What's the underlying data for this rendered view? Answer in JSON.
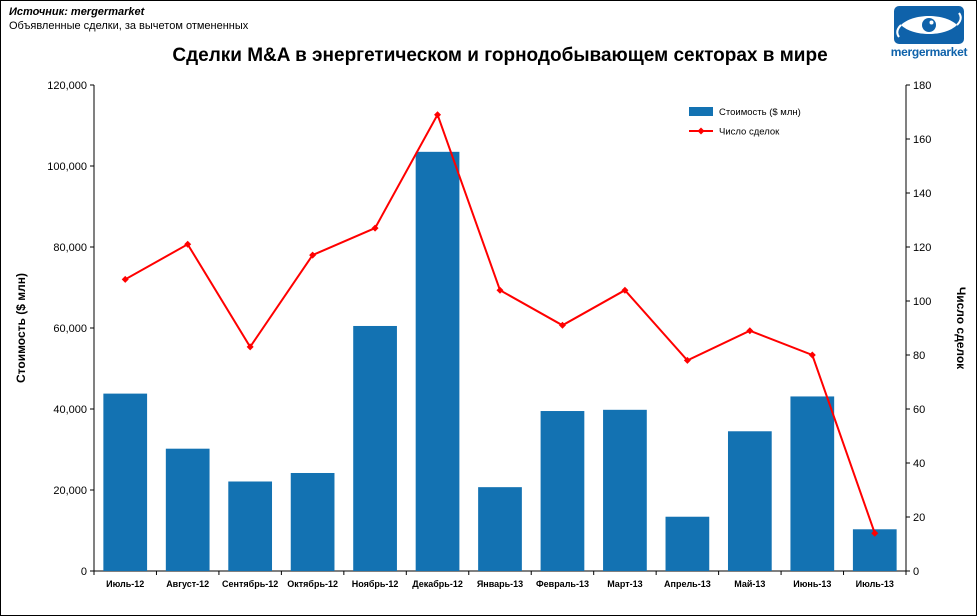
{
  "header": {
    "source_line1": "Источник: mergermarket",
    "source_line2": "Объявленные сделки, за вычетом отмененных",
    "logo_text": "mergermarket"
  },
  "colors": {
    "brand": "#0f62aa",
    "bar": "#1372b2",
    "line": "#ff0000"
  },
  "chart_data": {
    "type": "bar",
    "subtype": "bar+line combo, dual axis",
    "title": "Сделки M&A в энергетическом и горнодобывающем секторах в мире",
    "categories": [
      "Июль-12",
      "Август-12",
      "Сентябрь-12",
      "Октябрь-12",
      "Ноябрь-12",
      "Декабрь-12",
      "Январь-13",
      "Февраль-13",
      "Март-13",
      "Апрель-13",
      "Май-13",
      "Июнь-13",
      "Июль-13"
    ],
    "series": [
      {
        "name": "Стоимость ($ млн)",
        "type": "bar",
        "axis": "left",
        "color": "#1372b2",
        "values": [
          43800,
          30200,
          22100,
          24200,
          60500,
          103500,
          20700,
          39500,
          39800,
          13400,
          34500,
          43100,
          10300
        ]
      },
      {
        "name": "Число сделок",
        "type": "line",
        "axis": "right",
        "color": "#ff0000",
        "marker": "diamond",
        "values": [
          108,
          121,
          83,
          117,
          127,
          169,
          104,
          91,
          104,
          78,
          89,
          80,
          14
        ]
      }
    ],
    "left_axis": {
      "label": "Стоимость ($ млн)",
      "min": 0,
      "max": 120000,
      "step": 20000,
      "tick_format": "thousands-comma"
    },
    "right_axis": {
      "label": "Число сделок",
      "min": 0,
      "max": 180,
      "step": 20
    },
    "legend_position": "top-right-inside",
    "grid": false
  }
}
